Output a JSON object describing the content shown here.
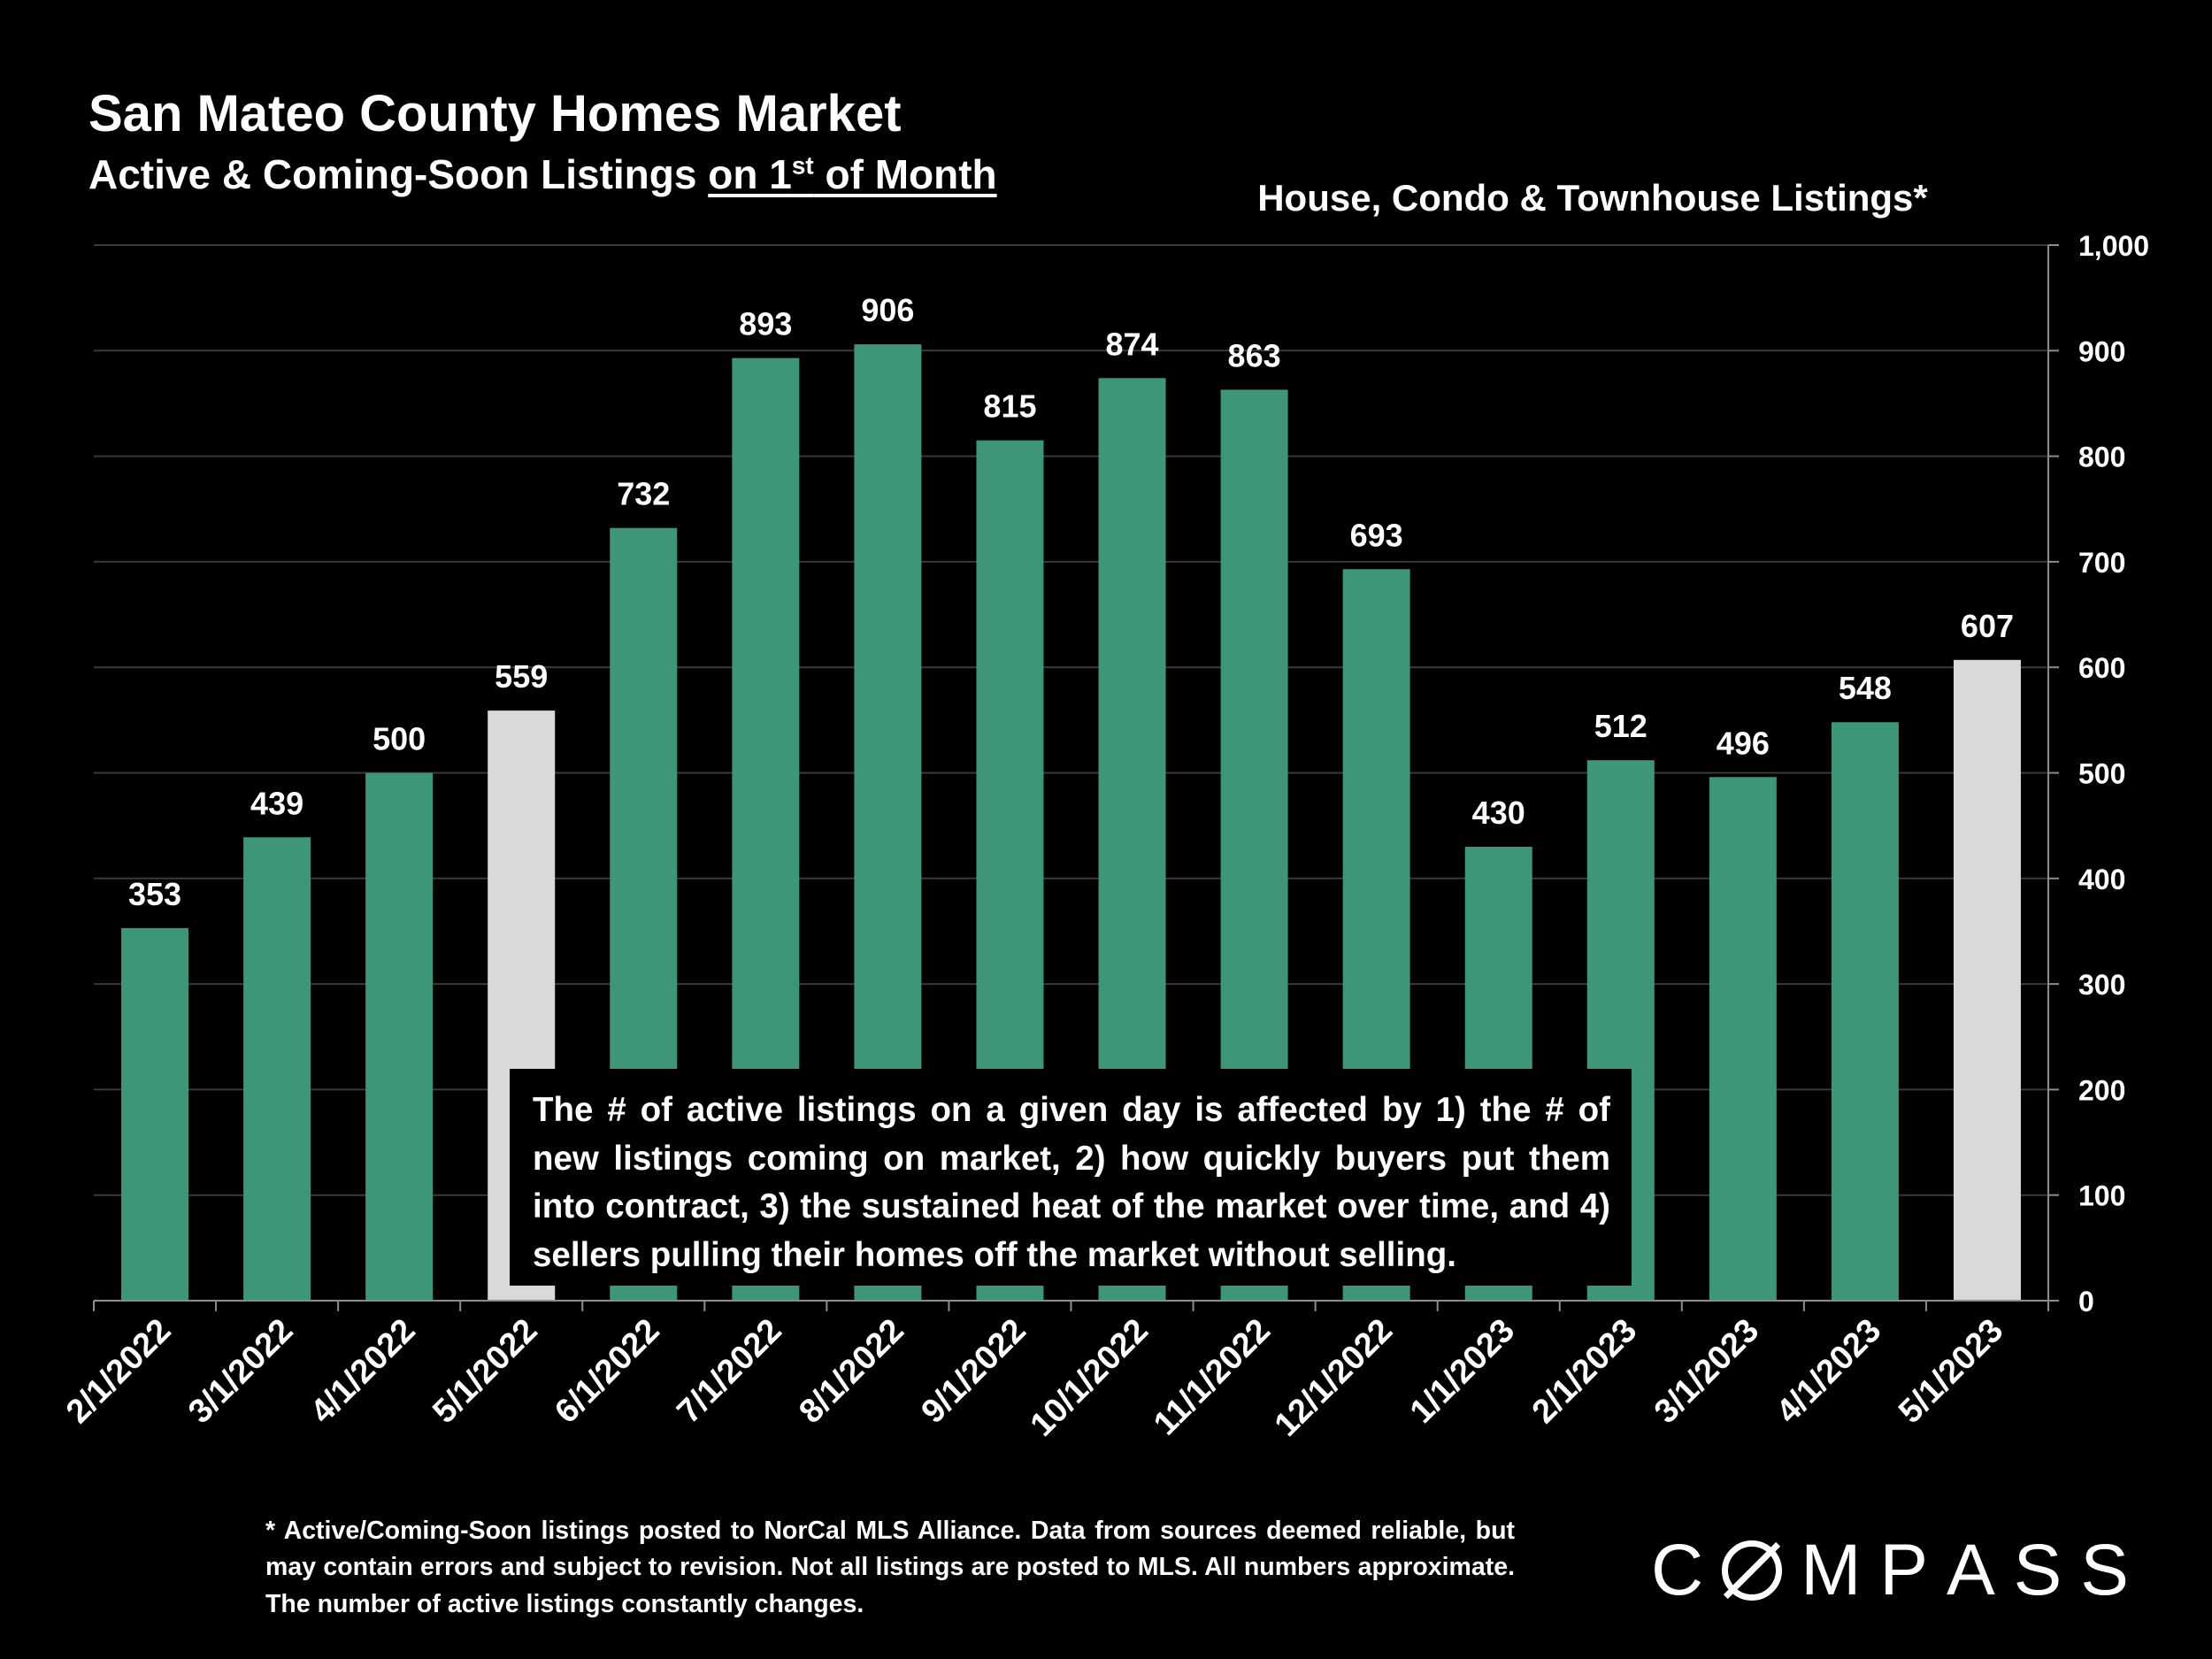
{
  "header": {
    "title": "San Mateo County Homes Market",
    "subtitle_prefix": "Active & Coming-Soon Listings ",
    "subtitle_underlined_a": "on 1",
    "subtitle_sup": "st",
    "subtitle_underlined_b": " of Month"
  },
  "note": "The # of active listings on a given day is affected by 1) the # of new listings coming on market, 2) how quickly buyers put them into contract, 3) the sustained heat of the market over time, and 4) sellers pulling their homes off the market without selling.",
  "footnote": "* Active/Coming-Soon listings posted to NorCal MLS Alliance.  Data from sources deemed reliable, but may contain errors and subject to revision.  Not all listings are posted to MLS. All numbers approximate. The number of active listings constantly changes.",
  "logo": {
    "text": "COMPASS",
    "letters": [
      "C",
      "M",
      "P",
      "A",
      "S",
      "S"
    ]
  },
  "chart_data": {
    "type": "bar",
    "title": "House, Condo & Townhouse Listings*",
    "categories": [
      "2/1/2022",
      "3/1/2022",
      "4/1/2022",
      "5/1/2022",
      "6/1/2022",
      "7/1/2022",
      "8/1/2022",
      "9/1/2022",
      "10/1/2022",
      "11/1/2022",
      "12/1/2022",
      "1/1/2023",
      "2/1/2023",
      "3/1/2023",
      "4/1/2023",
      "5/1/2023"
    ],
    "values": [
      353,
      439,
      500,
      559,
      732,
      893,
      906,
      815,
      874,
      863,
      693,
      430,
      512,
      496,
      548,
      607
    ],
    "highlighted": [
      "5/1/2022",
      "5/1/2023"
    ],
    "ylim": [
      0,
      1000
    ],
    "yticks": [
      0,
      100,
      200,
      300,
      400,
      500,
      600,
      700,
      800,
      900,
      1000
    ],
    "ytick_labels": [
      "0",
      "100",
      "200",
      "300",
      "400",
      "500",
      "600",
      "700",
      "800",
      "900",
      "1,000"
    ],
    "yaxis_side": "right",
    "grid": true,
    "colors": {
      "bar": "#3d967a",
      "highlight": "#d9d9d9",
      "grid": "#3a3a3a",
      "axis": "#8c8c8c"
    }
  }
}
